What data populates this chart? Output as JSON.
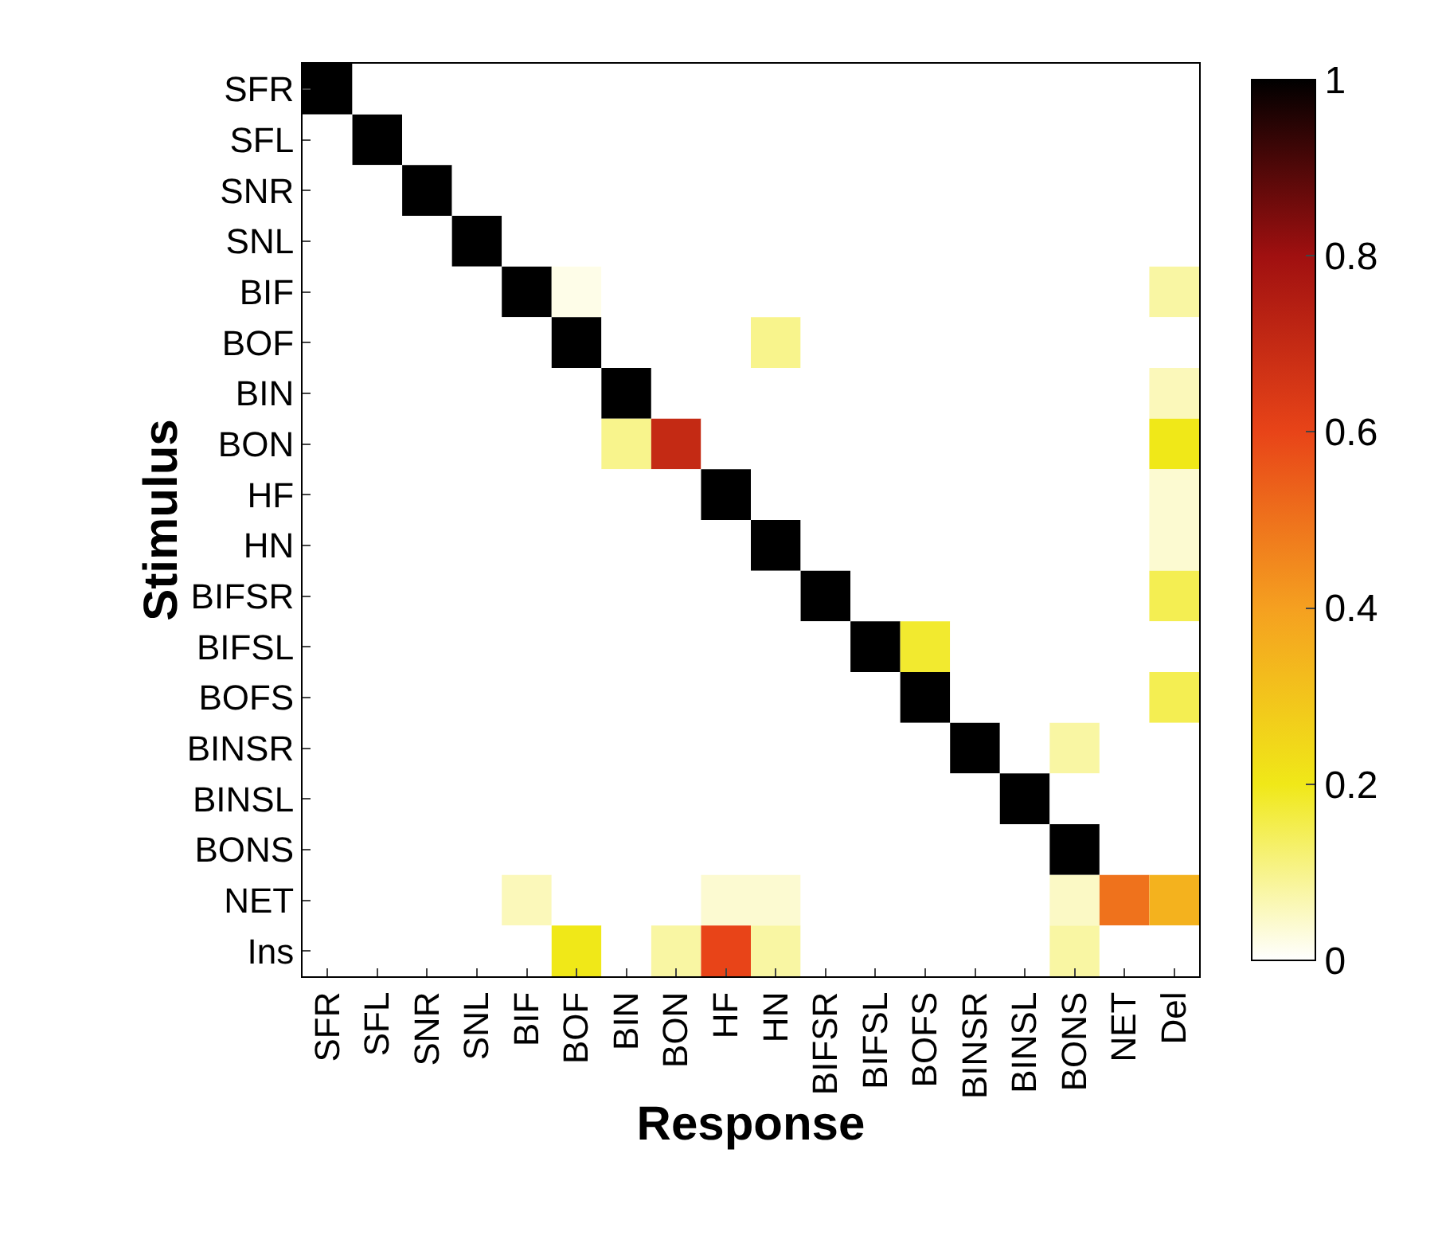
{
  "chart_data": {
    "type": "heatmap",
    "xlabel": "Response",
    "ylabel": "Stimulus",
    "categories": [
      "SFR",
      "SFL",
      "SNR",
      "SNL",
      "BIF",
      "BOF",
      "BIN",
      "BON",
      "HF",
      "HN",
      "BIFSR",
      "BIFSL",
      "BOFS",
      "BINSR",
      "BINSL",
      "BONS",
      "NET",
      "Del"
    ],
    "y_categories": [
      "SFR",
      "SFL",
      "SNR",
      "SNL",
      "BIF",
      "BOF",
      "BIN",
      "BON",
      "HF",
      "HN",
      "BIFSR",
      "BIFSL",
      "BOFS",
      "BINSR",
      "BINSL",
      "BONS",
      "NET",
      "Ins"
    ],
    "cells": [
      [
        1,
        0,
        0,
        0,
        0,
        0,
        0,
        0,
        0,
        0,
        0,
        0,
        0,
        0,
        0,
        0,
        0,
        0
      ],
      [
        0,
        1,
        0,
        0,
        0,
        0,
        0,
        0,
        0,
        0,
        0,
        0,
        0,
        0,
        0,
        0,
        0,
        0
      ],
      [
        0,
        0,
        1,
        0,
        0,
        0,
        0,
        0,
        0,
        0,
        0,
        0,
        0,
        0,
        0,
        0,
        0,
        0
      ],
      [
        0,
        0,
        0,
        1,
        0,
        0,
        0,
        0,
        0,
        0,
        0,
        0,
        0,
        0,
        0,
        0,
        0,
        0
      ],
      [
        0,
        0,
        0,
        0,
        1,
        0.02,
        0,
        0,
        0,
        0,
        0,
        0,
        0,
        0,
        0,
        0,
        0,
        0.08
      ],
      [
        0,
        0,
        0,
        0,
        0,
        1,
        0,
        0,
        0,
        0.1,
        0,
        0,
        0,
        0,
        0,
        0,
        0,
        0
      ],
      [
        0,
        0,
        0,
        0,
        0,
        0,
        1,
        0,
        0,
        0,
        0,
        0,
        0,
        0,
        0,
        0,
        0,
        0.06
      ],
      [
        0,
        0,
        0,
        0,
        0,
        0,
        0.1,
        0.7,
        0,
        0,
        0,
        0,
        0,
        0,
        0,
        0,
        0,
        0.2
      ],
      [
        0,
        0,
        0,
        0,
        0,
        0,
        0,
        0,
        1,
        0,
        0,
        0,
        0,
        0,
        0,
        0,
        0,
        0.04
      ],
      [
        0,
        0,
        0,
        0,
        0,
        0,
        0,
        0,
        0,
        1,
        0,
        0,
        0,
        0,
        0,
        0,
        0,
        0.04
      ],
      [
        0,
        0,
        0,
        0,
        0,
        0,
        0,
        0,
        0,
        0,
        1,
        0,
        0,
        0,
        0,
        0,
        0,
        0.15
      ],
      [
        0,
        0,
        0,
        0,
        0,
        0,
        0,
        0,
        0,
        0,
        0,
        1,
        0.18,
        0,
        0,
        0,
        0,
        0
      ],
      [
        0,
        0,
        0,
        0,
        0,
        0,
        0,
        0,
        0,
        0,
        0,
        0,
        1,
        0,
        0,
        0,
        0,
        0.15
      ],
      [
        0,
        0,
        0,
        0,
        0,
        0,
        0,
        0,
        0,
        0,
        0,
        0,
        0,
        1,
        0,
        0.08,
        0,
        0
      ],
      [
        0,
        0,
        0,
        0,
        0,
        0,
        0,
        0,
        0,
        0,
        0,
        0,
        0,
        0,
        1,
        0,
        0,
        0
      ],
      [
        0,
        0,
        0,
        0,
        0,
        0,
        0,
        0,
        0,
        0,
        0,
        0,
        0,
        0,
        0,
        1,
        0,
        0
      ],
      [
        0,
        0,
        0,
        0,
        0.06,
        0,
        0,
        0,
        0.04,
        0.04,
        0,
        0,
        0,
        0,
        0,
        0.05,
        0.5,
        0.35
      ],
      [
        0,
        0,
        0,
        0,
        0,
        0.2,
        0,
        0.08,
        0.6,
        0.08,
        0,
        0,
        0,
        0,
        0,
        0.08,
        0,
        0
      ]
    ],
    "clim": [
      0,
      1
    ],
    "cticks": [
      0,
      0.2,
      0.4,
      0.6,
      0.8,
      1
    ]
  }
}
